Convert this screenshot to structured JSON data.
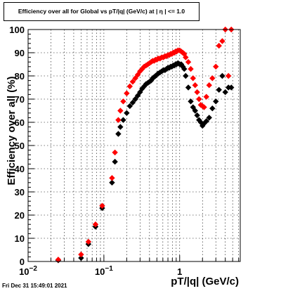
{
  "title": "Efficiency over all for Global vs pT/|q| (GeV/c) at |  η  | <= 1.0",
  "timestamp": "Fri Dec 31 15:49:01 2021",
  "chart_data": {
    "type": "scatter",
    "title": "Efficiency over all for Global vs pT/|q| (GeV/c) at |  η  | <= 1.0",
    "xlabel": "pT/|q| (GeV/c)",
    "ylabel": "Efficiency over all (%)",
    "xscale": "log",
    "xlim": [
      0.01,
      6.3
    ],
    "ylim": [
      0,
      100
    ],
    "grid": true,
    "x_ticks": [
      {
        "value": 0.01,
        "base": "10",
        "exp": "−2"
      },
      {
        "value": 0.1,
        "base": "10",
        "exp": "−1"
      },
      {
        "value": 1,
        "base": "1",
        "exp": ""
      }
    ],
    "y_ticks": [
      "0",
      "10",
      "20",
      "30",
      "40",
      "50",
      "60",
      "70",
      "80",
      "90",
      "100"
    ],
    "colors": {
      "series_1": "#000000",
      "series_2": "#ff0000"
    },
    "series": [
      {
        "color": "#000000",
        "x": [
          0.025,
          0.05,
          0.0625,
          0.0775,
          0.095,
          0.128,
          0.14,
          0.155,
          0.165,
          0.18,
          0.2,
          0.22,
          0.24,
          0.26,
          0.28,
          0.3,
          0.32,
          0.34,
          0.36,
          0.38,
          0.4,
          0.42,
          0.44,
          0.46,
          0.48,
          0.5,
          0.52,
          0.55,
          0.58,
          0.61,
          0.64,
          0.67,
          0.7,
          0.73,
          0.76,
          0.79,
          0.82,
          0.85,
          0.88,
          0.91,
          0.95,
          1.0,
          1.05,
          1.1,
          1.15,
          1.2,
          1.3,
          1.4,
          1.5,
          1.6,
          1.7,
          1.8,
          1.9,
          2.0,
          2.1,
          2.25,
          2.45,
          2.7,
          3.0,
          3.3,
          3.65,
          4.0,
          4.4,
          4.8
        ],
        "y": [
          0.5,
          1.5,
          7.5,
          15,
          23,
          34,
          43,
          55,
          58,
          61,
          64,
          67,
          68.5,
          70,
          71.5,
          73,
          74.5,
          75.5,
          76.5,
          77,
          77.5,
          78,
          79,
          79.5,
          80,
          80.5,
          81,
          81.5,
          82,
          82.5,
          82.5,
          83,
          83.5,
          83.5,
          84,
          84,
          84.5,
          84.5,
          85,
          85,
          85.5,
          85,
          85,
          84,
          83,
          80,
          75,
          69,
          66.5,
          65,
          63,
          61,
          60,
          58.5,
          59.5,
          60.5,
          62,
          66,
          69,
          74,
          80,
          73,
          75,
          75
        ]
      },
      {
        "color": "#ff0000",
        "x": [
          0.025,
          0.05,
          0.0625,
          0.0775,
          0.095,
          0.128,
          0.14,
          0.155,
          0.165,
          0.18,
          0.2,
          0.22,
          0.24,
          0.26,
          0.28,
          0.3,
          0.32,
          0.34,
          0.36,
          0.38,
          0.4,
          0.42,
          0.44,
          0.46,
          0.48,
          0.5,
          0.52,
          0.55,
          0.58,
          0.61,
          0.64,
          0.67,
          0.7,
          0.73,
          0.76,
          0.79,
          0.82,
          0.85,
          0.88,
          0.91,
          0.95,
          1.0,
          1.05,
          1.1,
          1.15,
          1.2,
          1.3,
          1.4,
          1.5,
          1.6,
          1.7,
          1.8,
          1.9,
          2.0,
          2.1,
          2.25,
          2.45,
          2.7,
          3.0,
          3.3,
          3.65,
          4.0,
          4.4,
          4.8
        ],
        "y": [
          0.8,
          3,
          8.5,
          16,
          24,
          36,
          47,
          61,
          65,
          69,
          72.5,
          75.5,
          77.5,
          79,
          80.5,
          82,
          83,
          84,
          84.5,
          85,
          85.5,
          86,
          86.5,
          86.5,
          87,
          87,
          87.5,
          87.5,
          88,
          88,
          88.5,
          88.5,
          89,
          89,
          89.5,
          89.5,
          90,
          90,
          90.5,
          90.5,
          91,
          91,
          90.5,
          90,
          89.5,
          88,
          86,
          83,
          79,
          76,
          73,
          70,
          67.5,
          67,
          66.5,
          71,
          76,
          79,
          84,
          93,
          95,
          100,
          80,
          100
        ]
      }
    ]
  }
}
